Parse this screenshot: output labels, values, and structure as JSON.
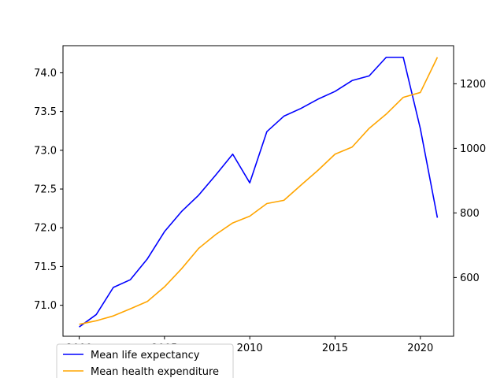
{
  "chart_data": {
    "type": "line",
    "x": [
      2000,
      2001,
      2002,
      2003,
      2004,
      2005,
      2006,
      2007,
      2008,
      2009,
      2010,
      2011,
      2012,
      2013,
      2014,
      2015,
      2016,
      2017,
      2018,
      2019,
      2020,
      2021
    ],
    "series": [
      {
        "name": "Mean life expectancy",
        "axis": "left",
        "color": "#0000ff",
        "values": [
          70.72,
          70.88,
          71.23,
          71.33,
          71.6,
          71.95,
          72.21,
          72.42,
          72.68,
          72.95,
          72.58,
          73.24,
          73.44,
          73.54,
          73.66,
          73.76,
          73.9,
          73.96,
          74.2,
          74.2,
          73.28,
          72.13
        ]
      },
      {
        "name": "Mean health expenditure",
        "axis": "right",
        "color": "#ffa500",
        "values": [
          455,
          466,
          481,
          503,
          526,
          571,
          627,
          690,
          733,
          769,
          790,
          829,
          839,
          886,
          932,
          982,
          1004,
          1062,
          1106,
          1158,
          1173,
          1282
        ]
      }
    ],
    "xlim": [
      1999.05,
      2021.95
    ],
    "ylim_left": [
      70.6,
      74.35
    ],
    "ylim_right": [
      418,
      1318
    ],
    "xticks": [
      2000,
      2005,
      2010,
      2015,
      2020
    ],
    "yticks_left": [
      71.0,
      71.5,
      72.0,
      72.5,
      73.0,
      73.5,
      74.0
    ],
    "yticks_right": [
      600,
      800,
      1000,
      1200
    ],
    "ytick_labels_left": [
      "71.0",
      "71.5",
      "72.0",
      "72.5",
      "73.0",
      "73.5",
      "74.0"
    ],
    "title": "",
    "xlabel": "",
    "ylabel_left": "",
    "ylabel_right": "",
    "grid": false,
    "legend_position": "bottom-left"
  }
}
